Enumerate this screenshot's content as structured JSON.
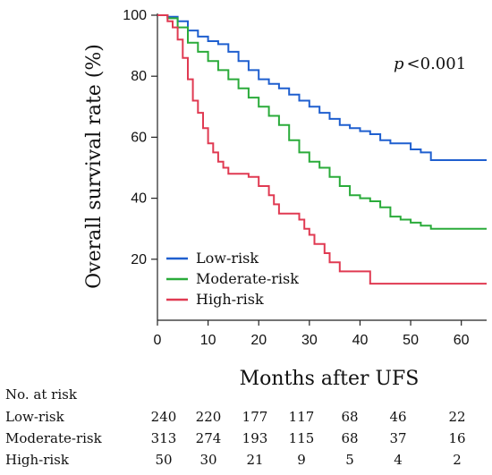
{
  "chart_data": {
    "type": "line",
    "title": "",
    "ylabel": "Overall survival rate (%)",
    "xlabel": "Months after UFS",
    "xlim": [
      0,
      65
    ],
    "ylim": [
      0,
      100
    ],
    "x_ticks": [
      0,
      10,
      20,
      30,
      40,
      50,
      60
    ],
    "y_ticks": [
      20,
      40,
      60,
      80,
      100
    ],
    "annotation": {
      "italic": "p",
      "rest": "<0.001"
    },
    "legend_position": "lower-left",
    "series": [
      {
        "name": "Low-risk",
        "color": "#1f5fcf",
        "points": [
          [
            0,
            100
          ],
          [
            2,
            99.5
          ],
          [
            4,
            98
          ],
          [
            6,
            95
          ],
          [
            8,
            93
          ],
          [
            10,
            91.5
          ],
          [
            12,
            90.5
          ],
          [
            14,
            88
          ],
          [
            16,
            85
          ],
          [
            18,
            82
          ],
          [
            20,
            79
          ],
          [
            22,
            77.5
          ],
          [
            24,
            76
          ],
          [
            26,
            74
          ],
          [
            28,
            72
          ],
          [
            30,
            70
          ],
          [
            32,
            68
          ],
          [
            34,
            66
          ],
          [
            36,
            64
          ],
          [
            38,
            63
          ],
          [
            40,
            62
          ],
          [
            42,
            61
          ],
          [
            44,
            59
          ],
          [
            46,
            58
          ],
          [
            48,
            58
          ],
          [
            50,
            56
          ],
          [
            52,
            55
          ],
          [
            54,
            52.5
          ],
          [
            56,
            52.5
          ],
          [
            60,
            52.5
          ],
          [
            65,
            52.5
          ]
        ]
      },
      {
        "name": "Moderate-risk",
        "color": "#2aab3a",
        "points": [
          [
            0,
            100
          ],
          [
            2,
            99
          ],
          [
            4,
            96
          ],
          [
            6,
            91
          ],
          [
            8,
            88
          ],
          [
            10,
            85
          ],
          [
            12,
            82
          ],
          [
            14,
            79
          ],
          [
            16,
            76
          ],
          [
            18,
            73
          ],
          [
            20,
            70
          ],
          [
            22,
            67
          ],
          [
            24,
            64
          ],
          [
            26,
            59
          ],
          [
            28,
            55
          ],
          [
            30,
            52
          ],
          [
            32,
            50
          ],
          [
            34,
            47
          ],
          [
            36,
            44
          ],
          [
            38,
            41
          ],
          [
            40,
            40
          ],
          [
            42,
            39
          ],
          [
            44,
            37
          ],
          [
            46,
            34
          ],
          [
            48,
            33
          ],
          [
            50,
            32
          ],
          [
            52,
            31
          ],
          [
            54,
            30
          ],
          [
            56,
            30
          ],
          [
            60,
            30
          ],
          [
            65,
            30
          ]
        ]
      },
      {
        "name": "High-risk",
        "color": "#e03a52",
        "points": [
          [
            0,
            100
          ],
          [
            2,
            98
          ],
          [
            3,
            96
          ],
          [
            4,
            92
          ],
          [
            5,
            86
          ],
          [
            6,
            79
          ],
          [
            7,
            72
          ],
          [
            8,
            68
          ],
          [
            9,
            63
          ],
          [
            10,
            58
          ],
          [
            11,
            55
          ],
          [
            12,
            52
          ],
          [
            13,
            50
          ],
          [
            14,
            48
          ],
          [
            16,
            48
          ],
          [
            18,
            47
          ],
          [
            20,
            44
          ],
          [
            22,
            41
          ],
          [
            23,
            38
          ],
          [
            24,
            35
          ],
          [
            26,
            35
          ],
          [
            28,
            33
          ],
          [
            29,
            30
          ],
          [
            30,
            28
          ],
          [
            31,
            25
          ],
          [
            33,
            22
          ],
          [
            34,
            19
          ],
          [
            36,
            16
          ],
          [
            40,
            16
          ],
          [
            42,
            12
          ],
          [
            50,
            12
          ],
          [
            65,
            12
          ]
        ]
      }
    ]
  },
  "risk_table": {
    "header": "No. at risk",
    "rows": [
      {
        "label": "Low-risk",
        "values": [
          "240",
          "220",
          "177",
          "117",
          "68",
          "46",
          "22"
        ]
      },
      {
        "label": "Moderate-risk",
        "values": [
          "313",
          "274",
          "193",
          "115",
          "68",
          "37",
          "16"
        ]
      },
      {
        "label": "High-risk",
        "values": [
          "50",
          "30",
          "21",
          "9",
          "5",
          "4",
          "2"
        ]
      }
    ]
  }
}
